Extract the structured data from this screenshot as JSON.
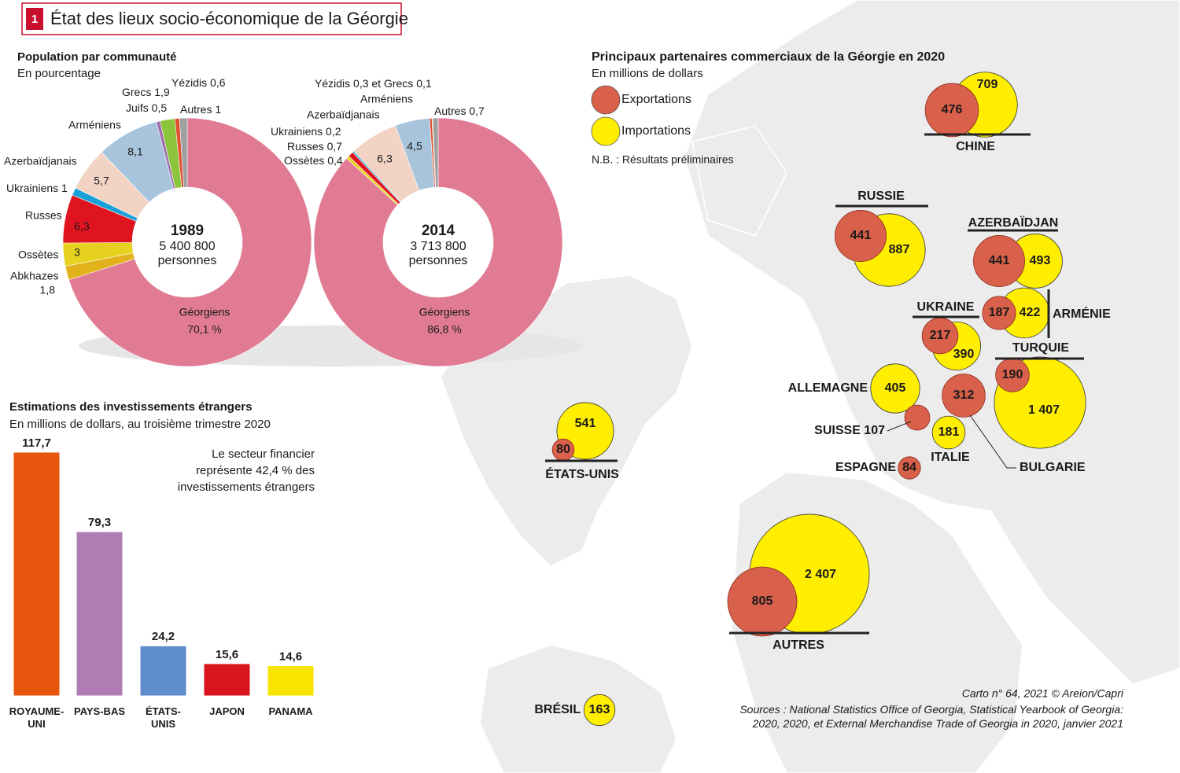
{
  "header": {
    "number": "1",
    "title": "État des lieux socio-économique de la Géorgie"
  },
  "chart_data": [
    {
      "type": "donut",
      "title": "Population par communauté",
      "subtitle": "En pourcentage",
      "center_title": "1989",
      "center_value": "5 400 800",
      "center_unit": "personnes",
      "categories": [
        "Géorgiens",
        "Abkhazes",
        "Ossètes",
        "Russes",
        "Ukrainiens",
        "Azerbaïdjanais",
        "Arméniens",
        "Juifs",
        "Grecs",
        "Yézidis",
        "Autres"
      ],
      "values": [
        70.1,
        1.8,
        3,
        6.3,
        1,
        5.7,
        8.1,
        0.5,
        1.9,
        0.6,
        1
      ],
      "value_labels": [
        "70,1 %",
        "1,8",
        "3",
        "6,3",
        "1",
        "5,7",
        "8,1",
        "0,5",
        "1,9",
        "0,6",
        "1"
      ],
      "colors": [
        "#e07b93",
        "#e2b21c",
        "#e6d21e",
        "#e0141e",
        "#1aa0d8",
        "#f2d3c4",
        "#a8c4dc",
        "#a070b0",
        "#8cc43c",
        "#e05030",
        "#a0a0a0"
      ]
    },
    {
      "type": "donut",
      "center_title": "2014",
      "center_value": "3 713 800",
      "center_unit": "personnes",
      "categories": [
        "Géorgiens",
        "Ossètes",
        "Russes",
        "Ukrainiens",
        "Azerbaïdjanais",
        "Arméniens",
        "Yézidis",
        "Grecs",
        "Autres"
      ],
      "values": [
        86.8,
        0.4,
        0.7,
        0.2,
        6.3,
        4.5,
        0.3,
        0.1,
        0.7
      ],
      "value_labels": [
        "86,8 %",
        "0,4",
        "0,7",
        "0,2",
        "6,3",
        "4,5",
        "0,3",
        "0,1",
        "0,7"
      ],
      "label_joiner": "et",
      "colors": [
        "#e07b93",
        "#e6d21e",
        "#e0141e",
        "#1aa0d8",
        "#f2d3c4",
        "#a8c4dc",
        "#e05030",
        "#8cc43c",
        "#a0a0a0"
      ]
    },
    {
      "type": "bar",
      "title": "Estimations des investissements étrangers",
      "subtitle": "En millions de dollars, au troisième trimestre 2020",
      "annotation": "Le secteur financier représente 42,4 % des investissements étrangers",
      "categories": [
        "ROYAUME-UNI",
        "PAYS-BAS",
        "ÉTATS-UNIS",
        "JAPON",
        "PANAMA"
      ],
      "values": [
        117.7,
        79.3,
        24.2,
        15.6,
        14.6
      ],
      "value_labels": [
        "117,7",
        "79,3",
        "24,2",
        "15,6",
        "14,6"
      ],
      "colors": [
        "#e8560e",
        "#b07cb4",
        "#5f8ccc",
        "#d8141c",
        "#f8e400"
      ]
    },
    {
      "type": "bubble",
      "title": "Principaux partenaires commerciaux de la Géorgie en 2020",
      "subtitle": "En millions de dollars",
      "note": "N.B. : Résultats préliminaires",
      "categories": [
        "CHINE",
        "RUSSIE",
        "AZERBAÏDJAN",
        "ARMÉNIE",
        "UKRAINE",
        "TURQUIE",
        "ALLEMAGNE",
        "SUISSE",
        "ITALIE",
        "BULGARIE",
        "ESPAGNE",
        "ÉTATS-UNIS",
        "AUTRES",
        "BRÉSIL"
      ],
      "series": [
        {
          "name": "Exportations",
          "color": "#d9604a",
          "values": [
            476,
            441,
            441,
            187,
            217,
            190,
            null,
            107,
            null,
            312,
            84,
            80,
            805,
            null
          ],
          "value_labels": [
            "476",
            "441",
            "441",
            "187",
            "217",
            "190",
            null,
            "107",
            null,
            "312",
            "84",
            "80",
            "805",
            null
          ]
        },
        {
          "name": "Importations",
          "color": "#ffee00",
          "values": [
            709,
            887,
            493,
            422,
            390,
            1407,
            405,
            null,
            181,
            null,
            null,
            541,
            2407,
            163
          ],
          "value_labels": [
            "709",
            "887",
            "493",
            "422",
            "390",
            "1 407",
            "405",
            null,
            "181",
            null,
            null,
            "541",
            "2 407",
            "163"
          ]
        }
      ]
    }
  ],
  "footer": {
    "credit": "Carto n° 64, 2021 © Areion/Capri",
    "sources": "Sources : National Statistics Office of Georgia, Statistical Yearbook of Georgia: 2020, 2020, et External Merchandise Trade of Georgia in 2020, janvier 2021"
  }
}
